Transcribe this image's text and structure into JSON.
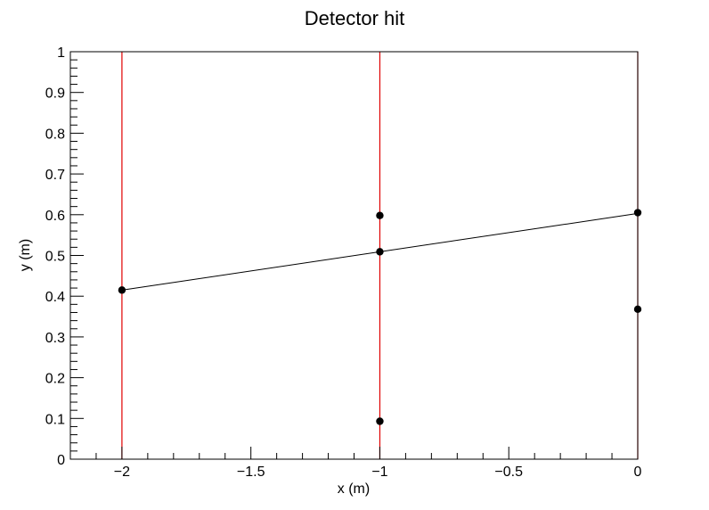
{
  "chart_data": {
    "type": "scatter",
    "title": "Detector hit",
    "xlabel": "x (m)",
    "ylabel": "y (m)",
    "xlim": [
      -2.2,
      0
    ],
    "ylim": [
      0,
      1
    ],
    "x_ticks": [
      -2,
      -1.5,
      -1,
      -0.5,
      0
    ],
    "x_tick_labels": [
      "−2",
      "−1.5",
      "−1",
      "−0.5",
      "0"
    ],
    "y_ticks": [
      0,
      0.1,
      0.2,
      0.3,
      0.4,
      0.5,
      0.6,
      0.7,
      0.8,
      0.9,
      1
    ],
    "y_tick_labels": [
      "0",
      "0.1",
      "0.2",
      "0.3",
      "0.4",
      "0.5",
      "0.6",
      "0.7",
      "0.8",
      "0.9",
      "1"
    ],
    "grid": false,
    "detector_planes_x": [
      -2,
      -1,
      0
    ],
    "detector_color": "#e00000",
    "hits": [
      {
        "x": -2,
        "y": 0.415
      },
      {
        "x": -1,
        "y": 0.598
      },
      {
        "x": -1,
        "y": 0.509
      },
      {
        "x": -1,
        "y": 0.093
      },
      {
        "x": 0,
        "y": 0.605
      },
      {
        "x": 0,
        "y": 0.368
      }
    ],
    "fit_line": {
      "x": [
        -2,
        0
      ],
      "y": [
        0.415,
        0.603
      ]
    },
    "marker_color": "#000000",
    "line_color": "#000000"
  }
}
